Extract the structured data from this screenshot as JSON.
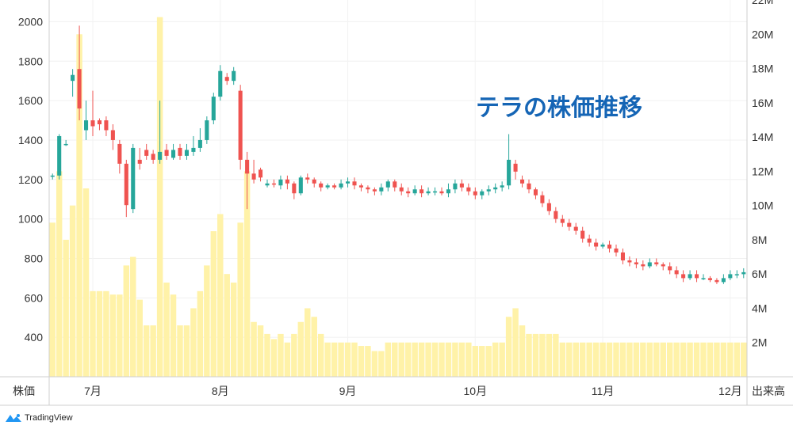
{
  "chart_data": {
    "type": "candlestick",
    "title": "テラの株価推移",
    "left_axis": {
      "label": "株価",
      "ticks": [
        400,
        600,
        800,
        1000,
        1200,
        1400,
        1600,
        1800,
        2000
      ],
      "range": [
        200,
        2110
      ]
    },
    "right_axis": {
      "label": "出来高",
      "ticks": [
        "2M",
        "4M",
        "6M",
        "8M",
        "10M",
        "12M",
        "14M",
        "16M",
        "18M",
        "20M",
        "22M"
      ],
      "range": [
        0,
        22
      ]
    },
    "x_axis": {
      "ticks": [
        {
          "label": "7月",
          "i": 6
        },
        {
          "label": "8月",
          "i": 25
        },
        {
          "label": "9月",
          "i": 44
        },
        {
          "label": "10月",
          "i": 63
        },
        {
          "label": "11月",
          "i": 82
        },
        {
          "label": "12月",
          "i": 101
        }
      ]
    },
    "colors": {
      "up": "#26a69a",
      "down": "#ef5350",
      "volume": "#fff2a8"
    },
    "candles": [
      [
        1220,
        1220,
        1230,
        1200,
        9
      ],
      [
        1220,
        1420,
        1430,
        1200,
        12
      ],
      [
        1380,
        1380,
        1400,
        1370,
        8
      ],
      [
        1700,
        1730,
        1760,
        1620,
        10
      ],
      [
        1760,
        1560,
        1980,
        1500,
        20
      ],
      [
        1450,
        1500,
        1600,
        1400,
        11
      ],
      [
        1500,
        1470,
        1650,
        1420,
        5
      ],
      [
        1500,
        1480,
        1510,
        1450,
        5
      ],
      [
        1500,
        1450,
        1520,
        1420,
        5
      ],
      [
        1450,
        1400,
        1480,
        1350,
        4.8
      ],
      [
        1380,
        1280,
        1400,
        1230,
        4.8
      ],
      [
        1280,
        1070,
        1300,
        1010,
        6.5
      ],
      [
        1050,
        1360,
        1380,
        1030,
        7
      ],
      [
        1300,
        1280,
        1360,
        1250,
        4.5
      ],
      [
        1350,
        1320,
        1380,
        1300,
        3
      ],
      [
        1330,
        1300,
        1350,
        1280,
        3
      ],
      [
        1300,
        1340,
        1600,
        1280,
        21
      ],
      [
        1350,
        1320,
        1380,
        1300,
        5.5
      ],
      [
        1310,
        1350,
        1380,
        1300,
        4.8
      ],
      [
        1360,
        1320,
        1380,
        1300,
        3
      ],
      [
        1320,
        1350,
        1380,
        1300,
        3
      ],
      [
        1340,
        1360,
        1420,
        1320,
        4
      ],
      [
        1360,
        1400,
        1460,
        1340,
        5
      ],
      [
        1400,
        1500,
        1520,
        1380,
        6.5
      ],
      [
        1500,
        1620,
        1640,
        1480,
        8.5
      ],
      [
        1620,
        1750,
        1780,
        1600,
        9.5
      ],
      [
        1720,
        1700,
        1740,
        1680,
        6
      ],
      [
        1700,
        1750,
        1770,
        1680,
        5.5
      ],
      [
        1650,
        1300,
        1680,
        1250,
        9
      ],
      [
        1300,
        1230,
        1340,
        1050,
        12
      ],
      [
        1230,
        1200,
        1300,
        1180,
        3.2
      ],
      [
        1250,
        1210,
        1260,
        1190,
        3
      ],
      [
        1170,
        1180,
        1200,
        1160,
        2.5
      ],
      [
        1180,
        1175,
        1200,
        1160,
        2.2
      ],
      [
        1170,
        1200,
        1220,
        1150,
        2.5
      ],
      [
        1200,
        1180,
        1220,
        1150,
        2
      ],
      [
        1180,
        1130,
        1190,
        1100,
        2.5
      ],
      [
        1130,
        1210,
        1220,
        1120,
        3.2
      ],
      [
        1210,
        1200,
        1230,
        1180,
        4
      ],
      [
        1200,
        1180,
        1210,
        1160,
        3.5
      ],
      [
        1180,
        1160,
        1190,
        1140,
        2.5
      ],
      [
        1160,
        1170,
        1180,
        1150,
        2
      ],
      [
        1170,
        1160,
        1180,
        1150,
        2
      ],
      [
        1160,
        1180,
        1200,
        1150,
        2
      ],
      [
        1180,
        1190,
        1210,
        1160,
        2
      ],
      [
        1190,
        1170,
        1210,
        1150,
        2
      ],
      [
        1170,
        1160,
        1180,
        1140,
        1.8
      ],
      [
        1160,
        1150,
        1170,
        1130,
        1.8
      ],
      [
        1150,
        1140,
        1160,
        1120,
        1.5
      ],
      [
        1140,
        1160,
        1180,
        1120,
        1.5
      ],
      [
        1160,
        1190,
        1200,
        1140,
        2
      ],
      [
        1190,
        1160,
        1200,
        1140,
        2
      ],
      [
        1160,
        1140,
        1180,
        1120,
        2
      ],
      [
        1140,
        1130,
        1160,
        1110,
        2
      ],
      [
        1130,
        1150,
        1170,
        1120,
        2
      ],
      [
        1150,
        1130,
        1170,
        1110,
        2
      ],
      [
        1130,
        1140,
        1160,
        1120,
        2
      ],
      [
        1140,
        1140,
        1160,
        1120,
        2
      ],
      [
        1140,
        1130,
        1160,
        1120,
        2
      ],
      [
        1130,
        1150,
        1180,
        1110,
        2
      ],
      [
        1150,
        1180,
        1200,
        1130,
        2
      ],
      [
        1180,
        1160,
        1200,
        1140,
        2
      ],
      [
        1160,
        1140,
        1180,
        1120,
        2
      ],
      [
        1140,
        1120,
        1160,
        1100,
        1.8
      ],
      [
        1120,
        1140,
        1150,
        1100,
        1.8
      ],
      [
        1140,
        1150,
        1170,
        1120,
        1.8
      ],
      [
        1150,
        1160,
        1180,
        1130,
        2
      ],
      [
        1160,
        1170,
        1190,
        1140,
        2
      ],
      [
        1170,
        1300,
        1430,
        1150,
        3.5
      ],
      [
        1280,
        1240,
        1300,
        1200,
        4
      ],
      [
        1200,
        1180,
        1220,
        1160,
        3
      ],
      [
        1180,
        1150,
        1200,
        1130,
        2.5
      ],
      [
        1150,
        1120,
        1160,
        1100,
        2.5
      ],
      [
        1120,
        1080,
        1140,
        1060,
        2.5
      ],
      [
        1080,
        1040,
        1100,
        1020,
        2.5
      ],
      [
        1040,
        1000,
        1060,
        980,
        2.5
      ],
      [
        1000,
        980,
        1020,
        960,
        2
      ],
      [
        980,
        960,
        1000,
        940,
        2
      ],
      [
        960,
        940,
        980,
        920,
        2
      ],
      [
        940,
        900,
        960,
        880,
        2
      ],
      [
        900,
        880,
        920,
        860,
        2
      ],
      [
        880,
        860,
        900,
        840,
        2
      ],
      [
        860,
        870,
        880,
        850,
        2
      ],
      [
        870,
        850,
        890,
        830,
        2
      ],
      [
        850,
        830,
        870,
        810,
        2
      ],
      [
        830,
        790,
        850,
        770,
        2
      ],
      [
        790,
        780,
        810,
        760,
        2
      ],
      [
        780,
        770,
        800,
        750,
        2
      ],
      [
        770,
        760,
        790,
        740,
        2
      ],
      [
        760,
        780,
        800,
        750,
        2
      ],
      [
        780,
        770,
        800,
        760,
        2
      ],
      [
        770,
        760,
        780,
        740,
        2
      ],
      [
        760,
        740,
        780,
        720,
        2
      ],
      [
        740,
        720,
        760,
        700,
        2
      ],
      [
        720,
        700,
        740,
        680,
        2
      ],
      [
        700,
        720,
        740,
        690,
        2
      ],
      [
        720,
        700,
        740,
        680,
        2
      ],
      [
        700,
        700,
        720,
        690,
        2
      ],
      [
        700,
        690,
        710,
        680,
        2
      ],
      [
        690,
        680,
        700,
        670,
        2
      ],
      [
        680,
        700,
        720,
        670,
        2
      ],
      [
        700,
        720,
        740,
        690,
        2
      ],
      [
        720,
        720,
        740,
        700,
        2
      ],
      [
        720,
        730,
        750,
        700,
        2
      ]
    ]
  }
}
